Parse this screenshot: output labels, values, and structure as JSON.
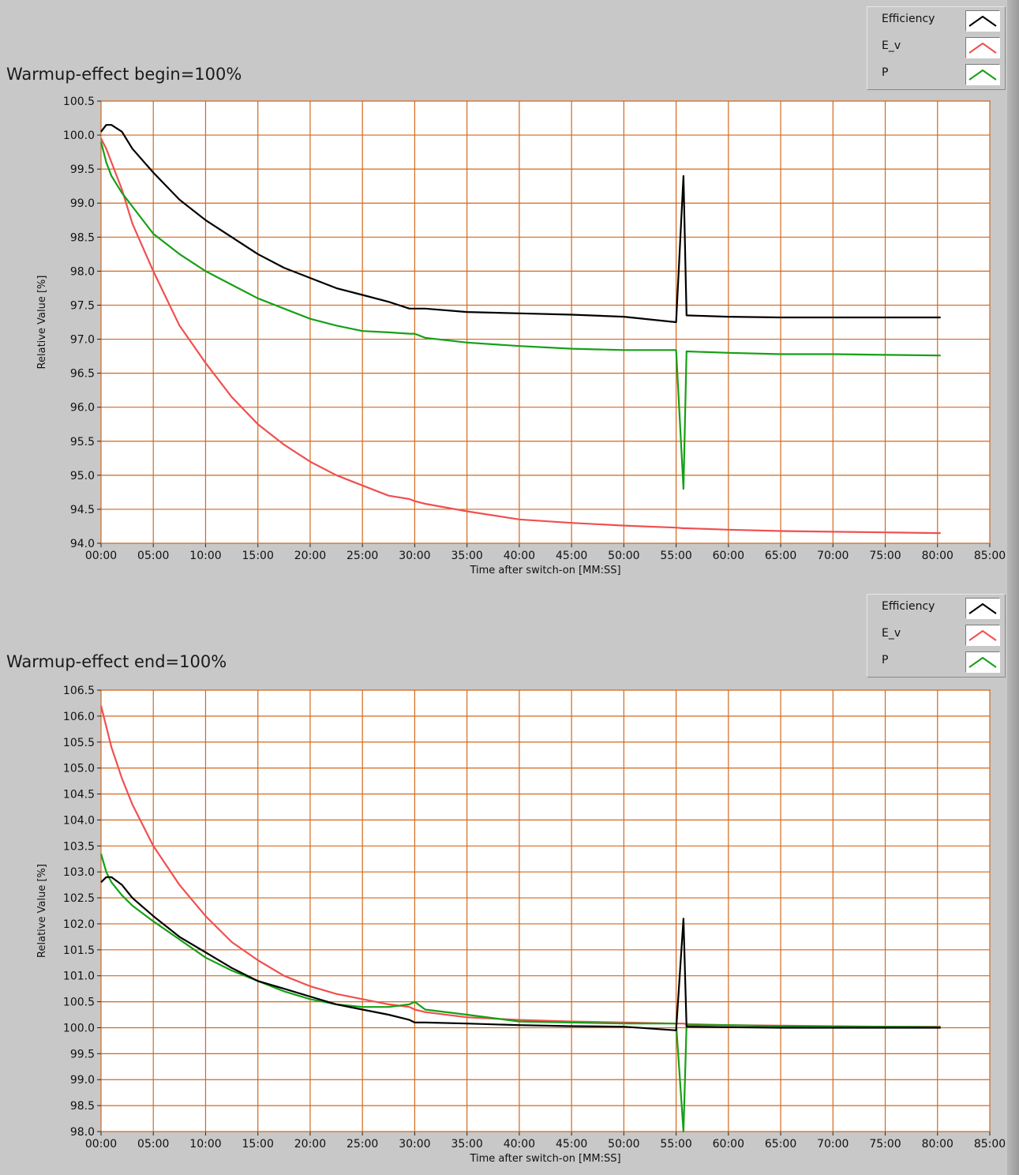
{
  "colors": {
    "Efficiency": "#000000",
    "E_v": "#f05050",
    "P": "#16a016",
    "grid": "#d2691e",
    "plot_background": "#ffffff",
    "panel_background": "#c8c8c8"
  },
  "legend_icon": "wave-peak-icon",
  "chart_data": [
    {
      "type": "line",
      "title": "Warmup-effect begin=100%",
      "xlabel": "Time after switch-on [MM:SS]",
      "ylabel": "Relative Value [%]",
      "xlim": [
        0,
        85
      ],
      "ylim": [
        94.0,
        100.5
      ],
      "grid": true,
      "legend_position": "top-right",
      "x_ticks": [
        "00:00",
        "05:00",
        "10:00",
        "15:00",
        "20:00",
        "25:00",
        "30:00",
        "35:00",
        "40:00",
        "45:00",
        "50:00",
        "55:00",
        "60:00",
        "65:00",
        "70:00",
        "75:00",
        "80:00",
        "85:00"
      ],
      "y_ticks": [
        "94.0",
        "94.5",
        "95.0",
        "95.5",
        "96.0",
        "96.5",
        "97.0",
        "97.5",
        "98.0",
        "98.5",
        "99.0",
        "99.5",
        "100.0",
        "100.5"
      ],
      "x": [
        0,
        0.5,
        1,
        2,
        3,
        5,
        7.5,
        10,
        12.5,
        15,
        17.5,
        20,
        22.5,
        25,
        27.5,
        29.5,
        30,
        31,
        35,
        40,
        45,
        50,
        55,
        55.7,
        56,
        60,
        65,
        70,
        75,
        80.3
      ],
      "series": [
        {
          "name": "Efficiency",
          "values": [
            100.05,
            100.15,
            100.15,
            100.05,
            99.8,
            99.45,
            99.05,
            98.75,
            98.5,
            98.25,
            98.05,
            97.9,
            97.75,
            97.65,
            97.55,
            97.45,
            97.45,
            97.45,
            97.4,
            97.38,
            97.36,
            97.33,
            97.25,
            99.4,
            97.35,
            97.33,
            97.32,
            97.32,
            97.32,
            97.32
          ]
        },
        {
          "name": "E_v",
          "values": [
            99.95,
            99.8,
            99.6,
            99.2,
            98.7,
            98.0,
            97.2,
            96.65,
            96.15,
            95.75,
            95.45,
            95.2,
            95.0,
            94.85,
            94.7,
            94.65,
            94.62,
            94.58,
            94.47,
            94.35,
            94.3,
            94.26,
            94.23,
            94.22,
            94.22,
            94.2,
            94.18,
            94.17,
            94.16,
            94.15
          ]
        },
        {
          "name": "P",
          "values": [
            99.9,
            99.6,
            99.4,
            99.15,
            98.95,
            98.55,
            98.25,
            98.0,
            97.8,
            97.6,
            97.45,
            97.3,
            97.2,
            97.12,
            97.1,
            97.08,
            97.08,
            97.02,
            96.95,
            96.9,
            96.86,
            96.84,
            96.84,
            94.8,
            96.82,
            96.8,
            96.78,
            96.78,
            96.77,
            96.76
          ]
        }
      ]
    },
    {
      "type": "line",
      "title": "Warmup-effect end=100%",
      "xlabel": "Time after switch-on [MM:SS]",
      "ylabel": "Relative Value [%]",
      "xlim": [
        0,
        85
      ],
      "ylim": [
        98.0,
        106.5
      ],
      "grid": true,
      "legend_position": "top-right",
      "x_ticks": [
        "00:00",
        "05:00",
        "10:00",
        "15:00",
        "20:00",
        "25:00",
        "30:00",
        "35:00",
        "40:00",
        "45:00",
        "50:00",
        "55:00",
        "60:00",
        "65:00",
        "70:00",
        "75:00",
        "80:00",
        "85:00"
      ],
      "y_ticks": [
        "98.0",
        "98.5",
        "99.0",
        "99.5",
        "100.0",
        "100.5",
        "101.0",
        "101.5",
        "102.0",
        "102.5",
        "103.0",
        "103.5",
        "104.0",
        "104.5",
        "105.0",
        "105.5",
        "106.0",
        "106.5"
      ],
      "x": [
        0,
        0.5,
        1,
        2,
        3,
        5,
        7.5,
        10,
        12.5,
        15,
        17.5,
        20,
        22.5,
        25,
        27.5,
        29.5,
        30,
        31,
        35,
        40,
        45,
        50,
        55,
        55.7,
        56,
        60,
        65,
        70,
        75,
        80.3
      ],
      "series": [
        {
          "name": "Efficiency",
          "values": [
            102.8,
            102.9,
            102.9,
            102.75,
            102.5,
            102.15,
            101.75,
            101.45,
            101.15,
            100.9,
            100.75,
            100.6,
            100.45,
            100.35,
            100.25,
            100.15,
            100.1,
            100.1,
            100.08,
            100.05,
            100.03,
            100.02,
            99.95,
            102.1,
            100.02,
            100.01,
            100.0,
            100.0,
            100.0,
            100.0
          ]
        },
        {
          "name": "E_v",
          "values": [
            106.2,
            105.8,
            105.4,
            104.8,
            104.3,
            103.5,
            102.75,
            102.15,
            101.65,
            101.3,
            101.0,
            100.8,
            100.65,
            100.55,
            100.45,
            100.4,
            100.35,
            100.3,
            100.2,
            100.15,
            100.12,
            100.1,
            100.08,
            100.08,
            100.07,
            100.05,
            100.04,
            100.03,
            100.02,
            100.02
          ]
        },
        {
          "name": "P",
          "values": [
            103.35,
            103.0,
            102.8,
            102.55,
            102.35,
            102.05,
            101.7,
            101.35,
            101.1,
            100.9,
            100.7,
            100.55,
            100.45,
            100.4,
            100.4,
            100.45,
            100.5,
            100.35,
            100.25,
            100.12,
            100.1,
            100.08,
            100.08,
            98.0,
            100.05,
            100.05,
            100.03,
            100.02,
            100.02,
            100.01
          ]
        }
      ]
    }
  ]
}
